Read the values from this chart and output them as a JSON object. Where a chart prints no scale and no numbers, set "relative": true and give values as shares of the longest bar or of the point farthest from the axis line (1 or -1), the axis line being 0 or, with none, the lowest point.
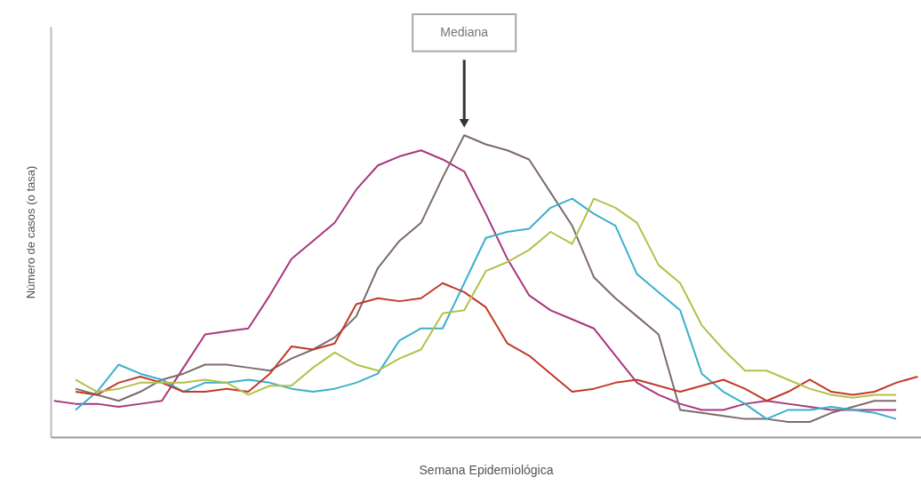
{
  "chart_data": {
    "type": "line",
    "relative": true,
    "xlabel": "Semana Epidemiológica",
    "ylabel": "Número de casos (o tasa)",
    "annotations": [
      "Mediana"
    ],
    "categories": [
      null,
      null,
      null,
      null,
      null,
      null,
      null,
      null,
      null,
      null,
      null,
      null,
      null,
      null,
      null,
      null,
      null,
      null,
      null,
      null,
      null,
      null,
      null,
      null,
      null,
      null,
      null,
      null,
      null,
      null,
      null,
      null,
      null,
      null,
      null,
      null,
      null,
      null,
      null,
      null,
      null
    ],
    "series": [
      {
        "color": "#a8377f",
        "values": [
          0.12,
          0.11,
          0.11,
          0.1,
          0.11,
          0.12,
          0.23,
          0.34,
          0.35,
          0.36,
          0.47,
          0.59,
          0.65,
          0.71,
          0.82,
          0.9,
          0.93,
          0.95,
          0.92,
          0.88,
          0.74,
          0.59,
          0.47,
          0.42,
          0.39,
          0.36,
          0.27,
          0.18,
          0.14,
          0.11,
          0.09,
          0.09,
          0.11,
          0.12,
          0.11,
          0.1,
          0.09,
          0.09,
          0.09,
          0.09,
          null
        ]
      },
      {
        "color": "#7d6b6b",
        "values": [
          null,
          0.16,
          0.14,
          0.12,
          0.15,
          0.19,
          0.21,
          0.24,
          0.24,
          0.23,
          0.22,
          0.26,
          0.29,
          0.33,
          0.4,
          0.56,
          0.65,
          0.71,
          0.86,
          1.0,
          0.97,
          0.95,
          0.92,
          0.81,
          0.7,
          0.53,
          0.46,
          0.4,
          0.34,
          0.09,
          0.08,
          0.07,
          0.06,
          0.06,
          0.05,
          0.05,
          0.08,
          0.1,
          0.12,
          0.12,
          null
        ]
      },
      {
        "color": "#3bb0cc",
        "values": [
          null,
          0.09,
          0.15,
          0.24,
          0.21,
          0.19,
          0.15,
          0.18,
          0.18,
          0.19,
          0.18,
          0.16,
          0.15,
          0.16,
          0.18,
          0.21,
          0.32,
          0.36,
          0.36,
          0.51,
          0.66,
          0.68,
          0.69,
          0.76,
          0.79,
          0.74,
          0.7,
          0.54,
          0.48,
          0.42,
          0.21,
          0.15,
          0.11,
          0.06,
          0.09,
          0.09,
          0.1,
          0.09,
          0.08,
          0.06,
          null
        ]
      },
      {
        "color": "#c0392b",
        "values": [
          null,
          0.15,
          0.14,
          0.18,
          0.2,
          0.18,
          0.15,
          0.15,
          0.16,
          0.15,
          0.21,
          0.3,
          0.29,
          0.31,
          0.44,
          0.46,
          0.45,
          0.46,
          0.51,
          0.48,
          0.43,
          0.31,
          0.27,
          0.21,
          0.15,
          0.16,
          0.18,
          0.19,
          0.17,
          0.15,
          0.17,
          0.19,
          0.16,
          0.12,
          0.15,
          0.19,
          0.15,
          0.14,
          0.15,
          0.18,
          0.2
        ]
      },
      {
        "color": "#b5c04a",
        "values": [
          null,
          0.19,
          0.15,
          0.16,
          0.18,
          0.18,
          0.18,
          0.19,
          0.18,
          0.14,
          0.17,
          0.17,
          0.23,
          0.28,
          0.24,
          0.22,
          0.26,
          0.29,
          0.41,
          0.42,
          0.55,
          0.58,
          0.62,
          0.68,
          0.64,
          0.79,
          0.76,
          0.71,
          0.57,
          0.51,
          0.37,
          0.29,
          0.22,
          0.22,
          0.19,
          0.16,
          0.14,
          0.13,
          0.14,
          0.14,
          null
        ]
      }
    ]
  }
}
